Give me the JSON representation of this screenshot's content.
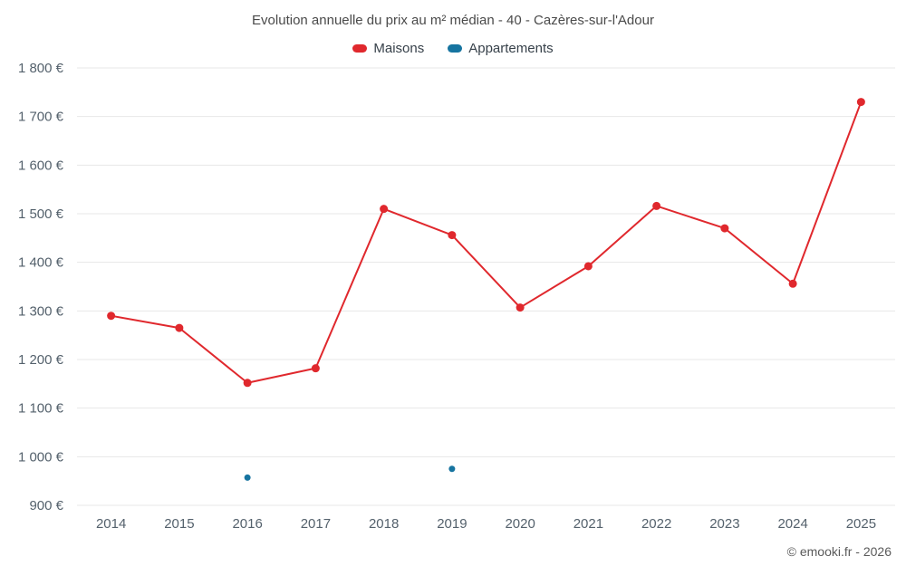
{
  "chart_data": {
    "type": "line",
    "title": "Evolution annuelle du prix au m² médian - 40 - Cazères-sur-l'Adour",
    "categories": [
      "2014",
      "2015",
      "2016",
      "2017",
      "2018",
      "2019",
      "2020",
      "2021",
      "2022",
      "2023",
      "2024",
      "2025"
    ],
    "series": [
      {
        "name": "Maisons",
        "color": "#e0282d",
        "values": [
          1290,
          1265,
          1152,
          1182,
          1510,
          1456,
          1307,
          1392,
          1516,
          1470,
          1356,
          1730
        ]
      },
      {
        "name": "Appartements",
        "color": "#1674a0",
        "values": [
          null,
          null,
          957,
          null,
          null,
          975,
          null,
          null,
          null,
          null,
          null,
          null
        ]
      }
    ],
    "ylim": [
      900,
      1800
    ],
    "ytick_step": 100,
    "y_suffix": " €",
    "legend_position": "top",
    "grid": "horizontal"
  },
  "footer": {
    "text": "© emooki.fr - 2026"
  },
  "colors": {
    "grid": "#e7e7e7",
    "axis_text": "#54616c",
    "title_text": "#4a4a4a",
    "footer_text": "#5a5a5a",
    "background": "#ffffff"
  }
}
